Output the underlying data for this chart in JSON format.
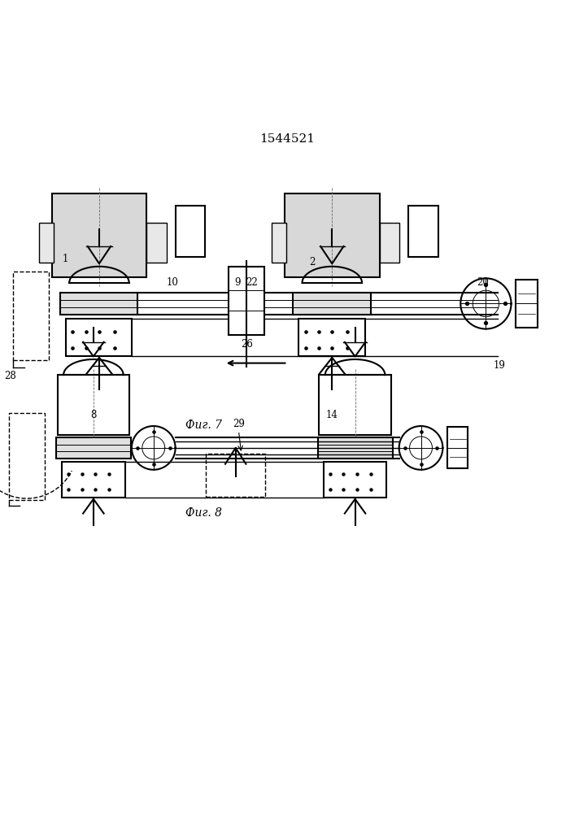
{
  "title": "1544521",
  "fig7_label": "Фиг. 7",
  "fig8_label": "Фиг. 8",
  "bg_color": "#ffffff",
  "line_color": "#000000",
  "line_width": 1.0
}
